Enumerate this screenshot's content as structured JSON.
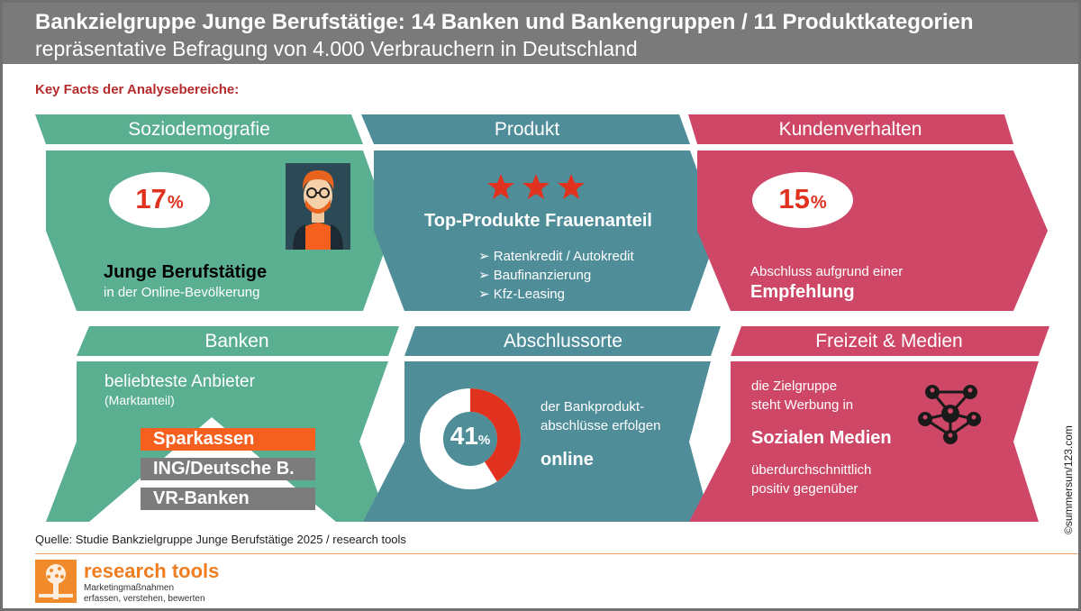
{
  "header": {
    "title": "Bankzielgruppe Junge Berufstätige: 14 Banken und Bankengruppen / 11 Produktkategorien",
    "subtitle": "repräsentative Befragung von 4.000 Verbrauchern in Deutschland"
  },
  "key_facts_label": "Key Facts der Analysebereiche:",
  "colors": {
    "green": "#5aaf91",
    "teal": "#4f8e99",
    "pink": "#cf4767",
    "orange": "#f5601e",
    "red": "#e0321e",
    "grey": "#7a7a7a"
  },
  "soziodemografie": {
    "heading": "Soziodemografie",
    "value": "17",
    "unit": "%",
    "line1": "Junge Berufstätige",
    "line2": "in der Online-Bevölkerung",
    "icon": "person-avatar-icon"
  },
  "produkt": {
    "heading": "Produkt",
    "stars": 3,
    "title": "Top-Produkte Frauenanteil",
    "items": [
      "Ratenkredit / Autokredit",
      "Baufinanzierung",
      "Kfz-Leasing"
    ],
    "bullet": "➢"
  },
  "kundenverhalten": {
    "heading": "Kundenverhalten",
    "value": "15",
    "unit": "%",
    "line1": "Abschluss aufgrund einer",
    "line2": "Empfehlung"
  },
  "banken": {
    "heading": "Banken",
    "line1": "beliebteste Anbieter",
    "line2": "(Marktanteil)",
    "ranking": [
      "Sparkassen",
      "ING/Deutsche B.",
      "VR-Banken"
    ]
  },
  "abschlussorte": {
    "heading": "Abschlussorte",
    "value": "41",
    "unit": "%",
    "share": 0.41,
    "line1": "der Bankprodukt-",
    "line2": "abschlüsse erfolgen",
    "line3": "online"
  },
  "freizeit": {
    "heading": "Freizeit & Medien",
    "line1": "die Zielgruppe",
    "line2": "steht Werbung in",
    "line3": "Sozialen Medien",
    "line4": "überdurchschnittlich",
    "line5": "positiv gegenüber",
    "icon": "social-network-icon"
  },
  "footer": {
    "source": "Quelle: Studie Bankzielgruppe Junge Berufstätige 2025 / research tools",
    "logo_name": "research tools",
    "logo_tag1": "Marketingmaßnahmen",
    "logo_tag2": "erfassen, verstehen, bewerten",
    "copyright": "©summersun/123.com"
  }
}
